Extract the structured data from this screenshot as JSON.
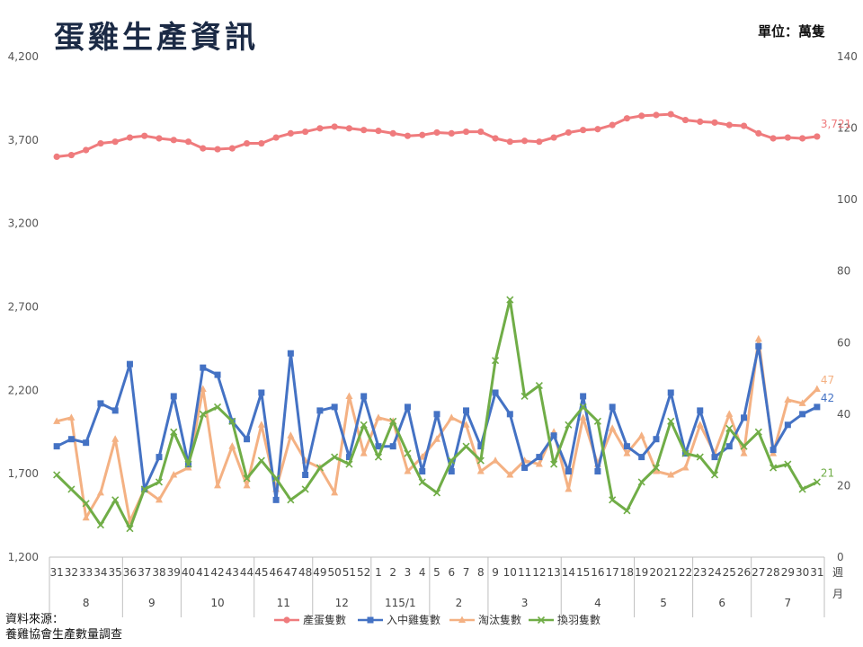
{
  "header": {
    "title": "蛋雞生產資訊",
    "unit": "單位：萬隻"
  },
  "footer": {
    "source_line1": "資料來源：",
    "source_line2": "養雞協會生產數量調查"
  },
  "chart_data": {
    "type": "line",
    "title": "蛋雞生產資訊",
    "unit": "單位：萬隻",
    "y_left": {
      "min": 1200,
      "max": 4200,
      "ticks": [
        "1,200",
        "1,700",
        "2,200",
        "2,700",
        "3,200",
        "3,700",
        "4,200"
      ]
    },
    "y_right": {
      "min": 0,
      "max": 140,
      "ticks": [
        "0",
        "20",
        "40",
        "60",
        "80",
        "100",
        "120",
        "140"
      ]
    },
    "x_axis_name": [
      "週",
      "月"
    ],
    "weeks": [
      "31",
      "32",
      "33",
      "34",
      "35",
      "36",
      "37",
      "38",
      "39",
      "40",
      "41",
      "42",
      "43",
      "44",
      "45",
      "46",
      "47",
      "48",
      "49",
      "50",
      "51",
      "52",
      "1",
      "2",
      "3",
      "4",
      "5",
      "6",
      "7",
      "8",
      "9",
      "10",
      "11",
      "12",
      "13",
      "14",
      "15",
      "16",
      "17",
      "18",
      "19",
      "20",
      "21",
      "22",
      "23",
      "24",
      "25",
      "26",
      "27",
      "28",
      "29",
      "30",
      "31"
    ],
    "months": [
      {
        "label": "8",
        "span": [
          0,
          4
        ]
      },
      {
        "label": "9",
        "span": [
          5,
          8
        ]
      },
      {
        "label": "10",
        "span": [
          9,
          13
        ]
      },
      {
        "label": "11",
        "span": [
          14,
          17
        ]
      },
      {
        "label": "12",
        "span": [
          18,
          21
        ]
      },
      {
        "label": "115/1",
        "span": [
          22,
          25
        ]
      },
      {
        "label": "2",
        "span": [
          26,
          29
        ]
      },
      {
        "label": "3",
        "span": [
          30,
          34
        ]
      },
      {
        "label": "4",
        "span": [
          35,
          39
        ]
      },
      {
        "label": "5",
        "span": [
          40,
          43
        ]
      },
      {
        "label": "6",
        "span": [
          44,
          47
        ]
      },
      {
        "label": "7",
        "span": [
          48,
          52
        ]
      }
    ],
    "grid": false,
    "legend_position": "bottom",
    "series": [
      {
        "name": "產蛋隻數",
        "axis": "left",
        "color": "#ef7b7d",
        "marker": "circle",
        "end_label": "3,721",
        "values": [
          3600,
          3610,
          3640,
          3680,
          3690,
          3715,
          3725,
          3710,
          3700,
          3690,
          3650,
          3645,
          3650,
          3680,
          3680,
          3715,
          3740,
          3750,
          3770,
          3780,
          3770,
          3760,
          3755,
          3740,
          3725,
          3730,
          3745,
          3740,
          3750,
          3750,
          3710,
          3690,
          3695,
          3690,
          3715,
          3745,
          3760,
          3765,
          3790,
          3830,
          3845,
          3850,
          3855,
          3820,
          3810,
          3805,
          3790,
          3785,
          3740,
          3710,
          3715,
          3710,
          3721
        ]
      },
      {
        "name": "入中雞隻數",
        "axis": "right",
        "color": "#4472c4",
        "marker": "square",
        "end_label": "42",
        "values": [
          31,
          33,
          32,
          43,
          41,
          54,
          19,
          28,
          45,
          26,
          53,
          51,
          38,
          33,
          46,
          16,
          57,
          23,
          41,
          42,
          28,
          45,
          31,
          31,
          42,
          24,
          40,
          24,
          41,
          31,
          46,
          40,
          25,
          28,
          34,
          24,
          45,
          24,
          42,
          31,
          28,
          33,
          46,
          29,
          41,
          28,
          31,
          39,
          59,
          30,
          37,
          40,
          42
        ]
      },
      {
        "name": "淘汰隻數",
        "axis": "right",
        "color": "#f4b183",
        "marker": "triangle",
        "end_label": "47",
        "values": [
          38,
          39,
          11,
          18,
          33,
          10,
          19,
          16,
          23,
          25,
          47,
          20,
          31,
          20,
          37,
          19,
          34,
          27,
          25,
          18,
          45,
          29,
          39,
          38,
          24,
          28,
          33,
          39,
          37,
          24,
          27,
          23,
          27,
          26,
          35,
          19,
          39,
          26,
          36,
          29,
          34,
          24,
          23,
          25,
          37,
          29,
          40,
          29,
          61,
          29,
          44,
          43,
          47
        ]
      },
      {
        "name": "換羽隻數",
        "axis": "right",
        "color": "#70ad47",
        "marker": "x",
        "end_label": "21",
        "values": [
          23,
          19,
          15,
          9,
          16,
          8,
          19,
          21,
          35,
          26,
          40,
          42,
          38,
          22,
          27,
          22,
          16,
          19,
          25,
          28,
          26,
          37,
          28,
          38,
          29,
          21,
          18,
          27,
          31,
          27,
          55,
          72,
          45,
          48,
          26,
          37,
          42,
          38,
          16,
          13,
          21,
          25,
          38,
          29,
          28,
          23,
          36,
          31,
          35,
          25,
          26,
          19,
          21
        ]
      }
    ]
  }
}
